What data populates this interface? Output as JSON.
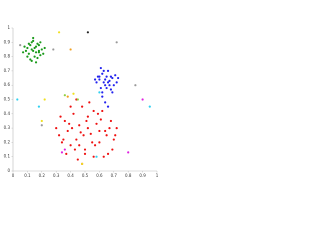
{
  "chart_data": {
    "type": "scatter",
    "xlim": [
      0,
      1
    ],
    "ylim": [
      0,
      1
    ],
    "xticks": [
      0,
      0.1,
      0.2,
      0.3,
      0.4,
      0.5,
      0.6,
      0.7,
      0.8,
      0.9,
      1
    ],
    "yticks": [
      0,
      0.1,
      0.2,
      0.3,
      0.4,
      0.5,
      0.6,
      0.7,
      0.8,
      0.9,
      1
    ],
    "series": [
      {
        "color": "#1a9a1a",
        "x": [
          0.1,
          0.12,
          0.14,
          0.16,
          0.18,
          0.2,
          0.11,
          0.13,
          0.15,
          0.17,
          0.19,
          0.09,
          0.08,
          0.12,
          0.14,
          0.16,
          0.18,
          0.21,
          0.13,
          0.15,
          0.17,
          0.1,
          0.19,
          0.14,
          0.16,
          0.11,
          0.07,
          0.22,
          0.13,
          0.18
        ],
        "values": [
          0.86,
          0.88,
          0.84,
          0.87,
          0.83,
          0.85,
          0.82,
          0.9,
          0.8,
          0.89,
          0.81,
          0.84,
          0.87,
          0.78,
          0.91,
          0.76,
          0.88,
          0.82,
          0.85,
          0.86,
          0.79,
          0.8,
          0.9,
          0.93,
          0.83,
          0.89,
          0.83,
          0.86,
          0.77,
          0.84
        ]
      },
      {
        "color": "#2222ee",
        "x": [
          0.6,
          0.62,
          0.64,
          0.66,
          0.68,
          0.7,
          0.58,
          0.61,
          0.63,
          0.65,
          0.67,
          0.69,
          0.72,
          0.59,
          0.62,
          0.64,
          0.66,
          0.68,
          0.71,
          0.6,
          0.63,
          0.65,
          0.67,
          0.57,
          0.73,
          0.64,
          0.66,
          0.62,
          0.69,
          0.61
        ],
        "values": [
          0.66,
          0.68,
          0.64,
          0.62,
          0.66,
          0.6,
          0.62,
          0.58,
          0.7,
          0.66,
          0.63,
          0.65,
          0.62,
          0.66,
          0.55,
          0.6,
          0.7,
          0.57,
          0.67,
          0.64,
          0.62,
          0.58,
          0.6,
          0.64,
          0.65,
          0.48,
          0.45,
          0.52,
          0.55,
          0.72
        ]
      },
      {
        "color": "#ee1111",
        "x": [
          0.3,
          0.32,
          0.34,
          0.36,
          0.38,
          0.4,
          0.42,
          0.44,
          0.46,
          0.48,
          0.5,
          0.52,
          0.54,
          0.56,
          0.58,
          0.6,
          0.62,
          0.64,
          0.66,
          0.68,
          0.7,
          0.72,
          0.33,
          0.37,
          0.41,
          0.45,
          0.49,
          0.53,
          0.57,
          0.61,
          0.65,
          0.69,
          0.35,
          0.39,
          0.43,
          0.47,
          0.51,
          0.55,
          0.59,
          0.63,
          0.67,
          0.71,
          0.44,
          0.48,
          0.52,
          0.56,
          0.46,
          0.5,
          0.4,
          0.6
        ],
        "values": [
          0.3,
          0.25,
          0.2,
          0.35,
          0.28,
          0.18,
          0.4,
          0.22,
          0.32,
          0.45,
          0.15,
          0.38,
          0.26,
          0.1,
          0.33,
          0.2,
          0.42,
          0.28,
          0.12,
          0.35,
          0.22,
          0.3,
          0.38,
          0.12,
          0.3,
          0.08,
          0.25,
          0.48,
          0.18,
          0.36,
          0.25,
          0.15,
          0.22,
          0.33,
          0.15,
          0.27,
          0.35,
          0.2,
          0.4,
          0.1,
          0.3,
          0.25,
          0.5,
          0.05,
          0.3,
          0.42,
          0.18,
          0.12,
          0.45,
          0.28
        ]
      },
      {
        "color": "#f0e020",
        "x": [
          0.32,
          0.48,
          0.22,
          0.42,
          0.2
        ],
        "values": [
          0.97,
          0.05,
          0.5,
          0.54,
          0.35
        ]
      },
      {
        "color": "#30d0f0",
        "x": [
          0.03,
          0.18,
          0.95,
          0.58,
          0.6
        ],
        "values": [
          0.5,
          0.45,
          0.45,
          0.1,
          0.55
        ]
      },
      {
        "color": "#e020e0",
        "x": [
          0.34,
          0.36,
          0.9,
          0.8
        ],
        "values": [
          0.13,
          0.15,
          0.5,
          0.13
        ]
      },
      {
        "color": "#999999",
        "x": [
          0.72,
          0.05,
          0.28,
          0.2,
          0.85
        ],
        "values": [
          0.9,
          0.88,
          0.85,
          0.32,
          0.6
        ]
      },
      {
        "color": "#222222",
        "x": [
          0.52
        ],
        "values": [
          0.97
        ]
      },
      {
        "color": "#f0a020",
        "x": [
          0.4,
          0.38
        ],
        "values": [
          0.85,
          0.52
        ]
      },
      {
        "color": "#90d040",
        "x": [
          0.36,
          0.45
        ],
        "values": [
          0.53,
          0.5
        ]
      }
    ]
  }
}
